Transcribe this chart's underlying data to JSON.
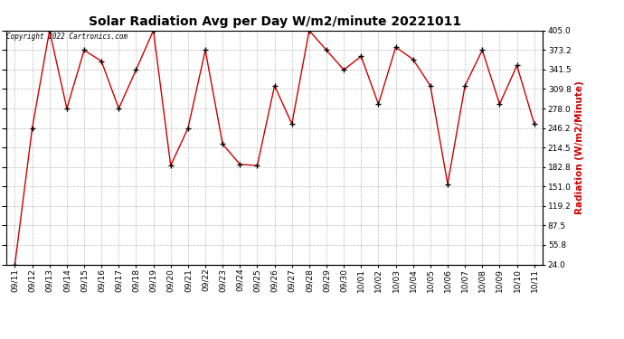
{
  "title": "Solar Radiation Avg per Day W/m2/minute 20221011",
  "ylabel": "Radiation (W/m2/Minute)",
  "copyright": "Copyright 2022 Cartronics.com",
  "dates": [
    "09/11",
    "09/12",
    "09/13",
    "09/14",
    "09/15",
    "09/16",
    "09/17",
    "09/18",
    "09/19",
    "09/20",
    "09/21",
    "09/22",
    "09/23",
    "09/24",
    "09/25",
    "09/26",
    "09/27",
    "09/28",
    "09/29",
    "09/30",
    "10/01",
    "10/02",
    "10/03",
    "10/04",
    "10/05",
    "10/06",
    "10/07",
    "10/08",
    "10/09",
    "10/10",
    "10/11"
  ],
  "values": [
    24,
    246,
    405,
    278,
    373,
    355,
    278,
    341,
    405,
    185,
    246,
    373,
    220,
    187,
    185,
    315,
    253,
    405,
    373,
    341,
    363,
    285,
    378,
    358,
    315,
    155,
    315,
    373,
    285,
    348,
    253
  ],
  "line_color": "#cc0000",
  "marker_color": "#000000",
  "background_color": "#ffffff",
  "grid_color": "#bbbbbb",
  "title_fontsize": 10,
  "label_fontsize": 7.5,
  "tick_fontsize": 6.5,
  "ylabel_color": "#cc0000",
  "copyright_color": "#000000",
  "ylim_min": 24.0,
  "ylim_max": 405.0,
  "yticks": [
    24.0,
    55.8,
    87.5,
    119.2,
    151.0,
    182.8,
    214.5,
    246.2,
    278.0,
    309.8,
    341.5,
    373.2,
    405.0
  ]
}
